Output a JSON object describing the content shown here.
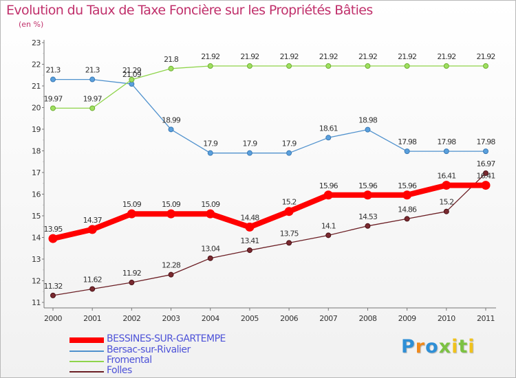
{
  "title": "Evolution du Taux de Taxe Foncière sur les Propriétés Bâties",
  "subtitle": "(en %)",
  "brand": "Proxiti",
  "chart_data": {
    "type": "line",
    "x": [
      "2000",
      "2001",
      "2002",
      "2003",
      "2004",
      "2005",
      "2006",
      "2007",
      "2008",
      "2009",
      "2010",
      "2011"
    ],
    "ylim": [
      11,
      23
    ],
    "yticks": [
      11,
      12,
      13,
      14,
      15,
      16,
      17,
      18,
      19,
      20,
      21,
      22,
      23
    ],
    "grid": false,
    "legend_position": "bottom-left",
    "series": [
      {
        "name": "BESSINES-SUR-GARTEMPE",
        "color": "#ff0000",
        "values": [
          13.95,
          14.37,
          15.09,
          15.09,
          15.09,
          14.48,
          15.2,
          15.96,
          15.96,
          15.96,
          16.41,
          16.41
        ],
        "labels": [
          "13.95",
          "14.37",
          "15.09",
          "15.09",
          "15.09",
          "14.48",
          "15.2",
          "15.96",
          "15.96",
          "15.96",
          "16.41",
          "16.41"
        ]
      },
      {
        "name": "Bersac-sur-Rivalier",
        "color": "#4f91cd",
        "values": [
          21.3,
          21.3,
          21.09,
          18.99,
          17.9,
          17.9,
          17.9,
          18.61,
          18.98,
          17.98,
          17.98,
          17.98
        ],
        "labels": [
          "21.3",
          "21.3",
          "21.09",
          "18.99",
          "17.9",
          "17.9",
          "17.9",
          "18.61",
          "18.98",
          "17.98",
          "17.98",
          "17.98"
        ]
      },
      {
        "name": "Fromental",
        "color": "#8ed44a",
        "values": [
          19.97,
          19.97,
          21.29,
          21.8,
          21.92,
          21.92,
          21.92,
          21.92,
          21.92,
          21.92,
          21.92,
          21.92
        ],
        "labels": [
          "19.97",
          "19.97",
          "21.29",
          "21.8",
          "21.92",
          "21.92",
          "21.92",
          "21.92",
          "21.92",
          "21.92",
          "21.92",
          "21.92"
        ]
      },
      {
        "name": "Folles",
        "color": "#6b1e24",
        "values": [
          11.32,
          11.62,
          11.92,
          12.28,
          13.04,
          13.41,
          13.75,
          14.1,
          14.53,
          14.86,
          15.2,
          16.97
        ],
        "labels": [
          "11.32",
          "11.62",
          "11.92",
          "12.28",
          "13.04",
          "13.41",
          "13.75",
          "14.1",
          "14.53",
          "14.86",
          "15.2",
          "16.97"
        ]
      }
    ]
  }
}
